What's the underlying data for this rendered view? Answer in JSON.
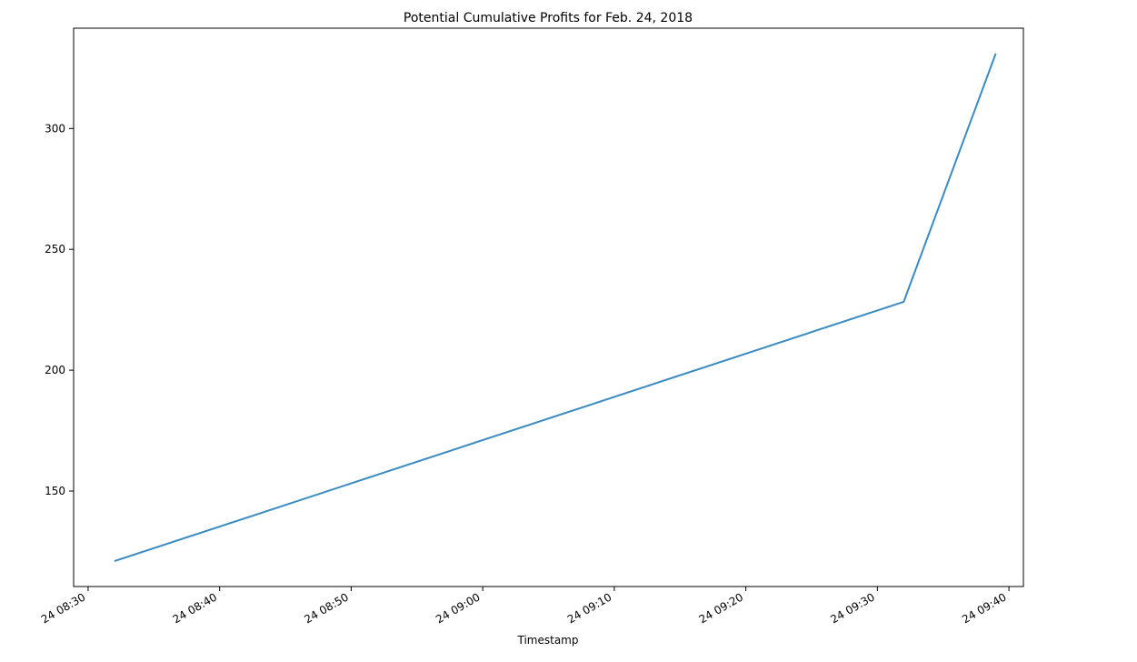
{
  "chart_data": {
    "type": "line",
    "title": "Potential Cumulative Profits for Feb. 24, 2018",
    "xlabel": "Timestamp",
    "ylabel": "",
    "x_ticks": [
      "24 08:30",
      "24 08:40",
      "24 08:50",
      "24 09:00",
      "24 09:10",
      "24 09:20",
      "24 09:30",
      "24 09:40"
    ],
    "y_ticks": [
      150,
      200,
      250,
      300
    ],
    "xlim": [
      "2018-02-24 08:28:54",
      "2018-02-24 09:41:06"
    ],
    "ylim": [
      110.5,
      341.5
    ],
    "grid": false,
    "series": [
      {
        "color": "#3b8bc2",
        "points": [
          {
            "x": "2018-02-24 08:32:00",
            "y": 121
          },
          {
            "x": "2018-02-24 09:32:00",
            "y": 228.3
          },
          {
            "x": "2018-02-24 09:39:00",
            "y": 331
          }
        ]
      }
    ]
  }
}
